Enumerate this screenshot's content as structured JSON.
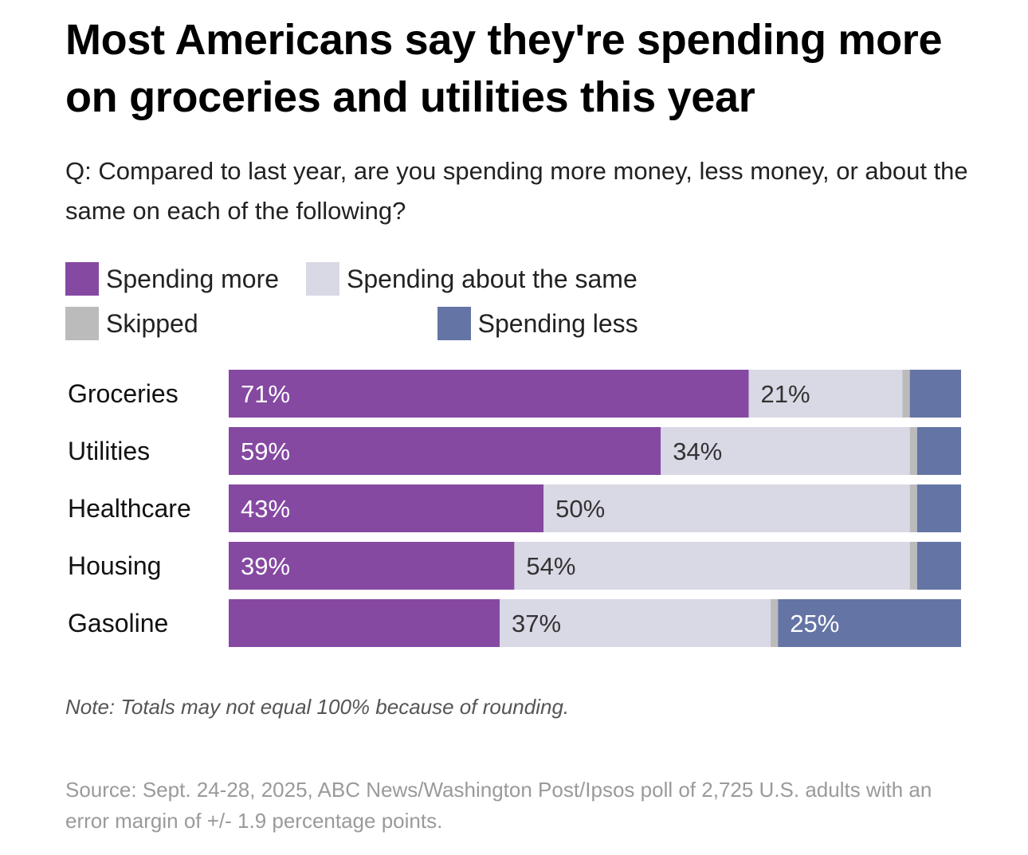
{
  "title": "Most Americans say they're spending more on groceries and utilities this year",
  "subtitle": "Q: Compared to last year, are you spending more money, less money, or about the same on each of the following?",
  "note": "Note: Totals may not equal 100% because of rounding.",
  "source": "Source: Sept. 24-28, 2025, ABC News/Washington Post/Ipsos poll of 2,725 U.S. adults with an error margin of +/- 1.9 percentage points.",
  "chart_data": {
    "type": "bar",
    "orientation": "horizontal",
    "stacked": true,
    "xlim": [
      0,
      100
    ],
    "categories": [
      "Groceries",
      "Utilities",
      "Healthcare",
      "Housing",
      "Gasoline"
    ],
    "series": [
      {
        "name": "Spending more",
        "color": "#8549a2",
        "values": [
          71,
          59,
          43,
          39,
          37
        ]
      },
      {
        "name": "Spending about the same",
        "color": "#d9d8e5",
        "values": [
          21,
          34,
          50,
          54,
          37
        ]
      },
      {
        "name": "Skipped",
        "color": "#bbbbbb",
        "values": [
          1,
          1,
          1,
          1,
          1
        ]
      },
      {
        "name": "Spending less",
        "color": "#6474a4",
        "values": [
          7,
          6,
          6,
          6,
          25
        ]
      }
    ],
    "data_labels": [
      [
        "71%",
        "21%",
        "",
        ""
      ],
      [
        "59%",
        "34%",
        "",
        ""
      ],
      [
        "43%",
        "50%",
        "",
        ""
      ],
      [
        "39%",
        "54%",
        "",
        ""
      ],
      [
        "",
        "37%",
        "",
        "25%"
      ]
    ],
    "legend_position": "top-left",
    "grid": false
  }
}
